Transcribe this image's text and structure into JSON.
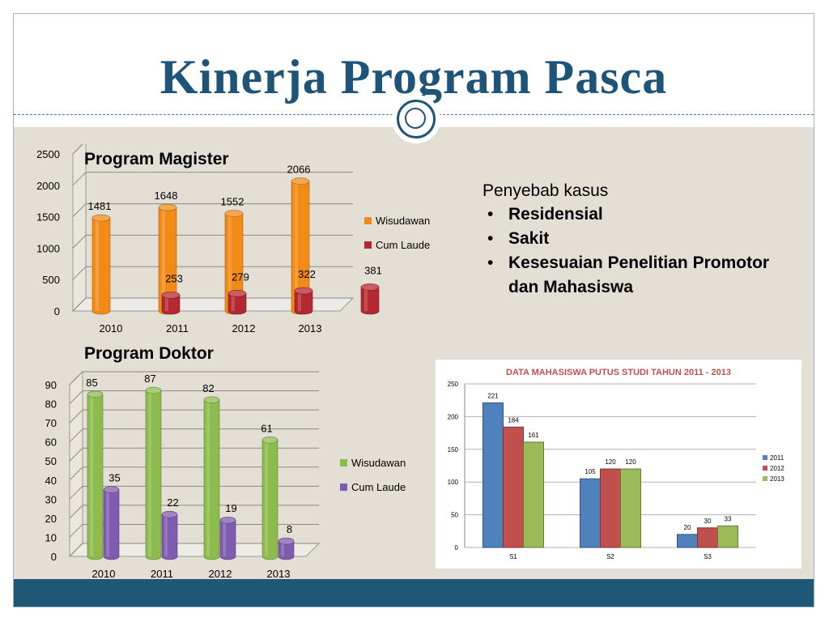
{
  "slide": {
    "title": "Kinerja Program Pasca"
  },
  "colors": {
    "title": "#1f5479",
    "background": "#e3dfd4",
    "footer": "#1f5777",
    "orange": "#f28b16",
    "crimson": "#b52832",
    "green": "#8dbb4c",
    "purple": "#7f5cb0",
    "s2011": "#4f81bd",
    "s2012": "#c0504d",
    "s2013": "#9bbb59"
  },
  "notes": {
    "heading": "Penyebab kasus",
    "items": [
      "Residensial",
      "Sakit",
      "Kesesuaian Penelitian Promotor dan Mahasiswa"
    ]
  },
  "chart_data": [
    {
      "type": "bar",
      "title": "Program Magister",
      "categories": [
        "2010",
        "2011",
        "2012",
        "2013"
      ],
      "series": [
        {
          "name": "Wisudawan",
          "values": [
            1481,
            1648,
            1552,
            2066
          ],
          "color": "#f28b16"
        },
        {
          "name": "Cum Laude",
          "values": [
            253,
            279,
            322,
            381
          ],
          "color": "#b52832"
        }
      ],
      "yticks": [
        "0",
        "500",
        "1000",
        "1500",
        "2000",
        "2500"
      ],
      "ylim": [
        0,
        2500
      ],
      "legend": "right"
    },
    {
      "type": "bar",
      "title": "Program Doktor",
      "categories": [
        "2010",
        "2011",
        "2012",
        "2013"
      ],
      "series": [
        {
          "name": "Wisudawan",
          "values": [
            85,
            87,
            82,
            61
          ],
          "color": "#8dbb4c"
        },
        {
          "name": "Cum Laude",
          "values": [
            35,
            22,
            19,
            8
          ],
          "color": "#7f5cb0"
        }
      ],
      "yticks": [
        "0",
        "10",
        "20",
        "30",
        "40",
        "50",
        "60",
        "70",
        "80",
        "90"
      ],
      "ylim": [
        0,
        90
      ],
      "legend": "right"
    },
    {
      "type": "bar",
      "title": "DATA MAHASISWA PUTUS STUDI TAHUN 2011 - 2013",
      "categories": [
        "S1",
        "S2",
        "S3"
      ],
      "series": [
        {
          "name": "2011",
          "values": [
            221,
            105,
            20
          ],
          "color": "#4f81bd"
        },
        {
          "name": "2012",
          "values": [
            184,
            120,
            30
          ],
          "color": "#c0504d"
        },
        {
          "name": "2013",
          "values": [
            161,
            120,
            33
          ],
          "color": "#9bbb59"
        }
      ],
      "yticks": [
        "0",
        "50",
        "100",
        "150",
        "200",
        "250"
      ],
      "ylim": [
        0,
        250
      ],
      "legend": "right"
    }
  ]
}
